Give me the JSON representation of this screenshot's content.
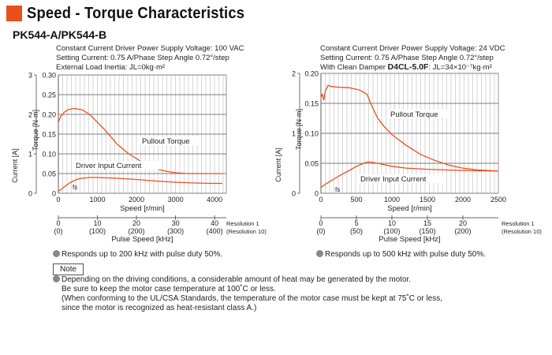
{
  "page": {
    "title": "Speed - Torque Characteristics",
    "model": "PK544-A/PK544-B"
  },
  "chart_data": [
    {
      "type": "line",
      "conditions": [
        "Constant Current Driver  Power Supply Voltage: 100 VAC",
        "Setting Current: 0.75 A/Phase  Step Angle 0.72°/step",
        "External Load Inertia: JL=0kg·m²"
      ],
      "xlabel": "Speed [r/min]",
      "x2label": "Pulse Speed [kHz]",
      "ylabel": "Torque [N·m]",
      "y2label": "Current [A]",
      "xlim": [
        0,
        4300
      ],
      "ylim": [
        0,
        0.3
      ],
      "y2lim": [
        0,
        3
      ],
      "xticks": [
        "0",
        "1000",
        "2000",
        "3000",
        "4000"
      ],
      "yticks": [
        "0",
        "0.05",
        "0.10",
        "0.15",
        "0.20",
        "0.25",
        "0.30"
      ],
      "y2ticks": [
        "0",
        "1",
        "2",
        "3"
      ],
      "x2ticks_res1": [
        "0",
        "10",
        "20",
        "30",
        "40"
      ],
      "x2ticks_res10": [
        "(0)",
        "(100)",
        "(200)",
        "(300)",
        "(400)"
      ],
      "resolution_label_1": "Resolution 1",
      "resolution_label_10": "(Resolution 10)",
      "fs_label": "fs",
      "series": [
        {
          "name": "Pullout Torque",
          "color": "#e8501e",
          "x": [
            0,
            60,
            150,
            250,
            400,
            600,
            800,
            1000,
            1200,
            1500,
            1800,
            2000,
            2200,
            2500,
            2800,
            3000,
            3300,
            3600,
            3900,
            4200
          ],
          "y": [
            0.18,
            0.195,
            0.205,
            0.212,
            0.215,
            0.212,
            0.2,
            0.18,
            0.16,
            0.125,
            0.1,
            0.088,
            0.075,
            0.062,
            0.055,
            0.052,
            0.05,
            0.05,
            0.05,
            0.05
          ]
        },
        {
          "name": "Driver Input Current",
          "color": "#e8501e",
          "axis": "y2",
          "x": [
            0,
            100,
            200,
            300,
            400,
            500,
            600,
            800,
            1000,
            1500,
            2000,
            2500,
            3000,
            3500,
            4000,
            4200
          ],
          "y": [
            0.05,
            0.12,
            0.2,
            0.27,
            0.32,
            0.36,
            0.38,
            0.4,
            0.4,
            0.38,
            0.35,
            0.31,
            0.28,
            0.26,
            0.25,
            0.25
          ]
        }
      ]
    },
    {
      "type": "line",
      "conditions": [
        "Constant Current Driver  Power Supply Voltage: 24 VDC",
        "Setting Current: 0.75 A/Phase  Step Angle 0.72°/step"
      ],
      "damper_prefix": "With Clean Damper ",
      "damper_model": "D4CL-5.0F",
      "damper_suffix": ": JL=34×10⁻⁷kg·m²",
      "xlabel": "Speed [r/min]",
      "x2label": "Pulse Speed [kHz]",
      "ylabel": "Torque [N·m]",
      "y2label": "Current [A]",
      "xlim": [
        0,
        2500
      ],
      "ylim": [
        0,
        0.2
      ],
      "y2lim": [
        0,
        2
      ],
      "xticks": [
        "0",
        "500",
        "1000",
        "1500",
        "2000",
        "2500"
      ],
      "yticks": [
        "0",
        "0.05",
        "0.10",
        "0.15",
        "0.20"
      ],
      "y2ticks": [
        "0",
        "1",
        "2"
      ],
      "x2ticks_res1": [
        "0",
        "5",
        "10",
        "15",
        "20"
      ],
      "x2ticks_res10": [
        "(0)",
        "(50)",
        "(100)",
        "(150)",
        "(200)"
      ],
      "resolution_label_1": "Resolution 1",
      "resolution_label_10": "(Resolution 10)",
      "fs_label": "fs",
      "series": [
        {
          "name": "Pullout Torque",
          "color": "#e8501e",
          "x": [
            0,
            20,
            40,
            60,
            80,
            100,
            150,
            250,
            400,
            550,
            650,
            700,
            800,
            900,
            1000,
            1200,
            1400,
            1600,
            1800,
            2000,
            2200,
            2500
          ],
          "y": [
            0.16,
            0.165,
            0.155,
            0.17,
            0.175,
            0.18,
            0.178,
            0.177,
            0.176,
            0.172,
            0.165,
            0.15,
            0.125,
            0.11,
            0.098,
            0.08,
            0.065,
            0.055,
            0.047,
            0.042,
            0.039,
            0.037
          ]
        },
        {
          "name": "Driver Input Current",
          "color": "#e8501e",
          "axis": "y2",
          "x": [
            0,
            100,
            200,
            300,
            400,
            500,
            600,
            650,
            700,
            800,
            1000,
            1200,
            1500,
            2000,
            2500
          ],
          "y": [
            0.1,
            0.18,
            0.25,
            0.32,
            0.38,
            0.45,
            0.5,
            0.52,
            0.52,
            0.5,
            0.45,
            0.42,
            0.4,
            0.38,
            0.37
          ]
        }
      ]
    }
  ],
  "bullets": [
    "Responds up to 200 kHz with pulse duty 50%.",
    "Responds up to 500 kHz with pulse duty 50%."
  ],
  "note": {
    "label": "Note",
    "lines": [
      "Depending on the driving conditions, a considerable amount of heat may be generated by the motor.",
      "Be sure to keep the motor case temperature at 100˚C or less.",
      "(When conforming to the UL/CSA Standards, the temperature of the motor case must be kept at 75˚C or less,",
      "since the motor is recognized as heat-resistant class A.)"
    ]
  }
}
